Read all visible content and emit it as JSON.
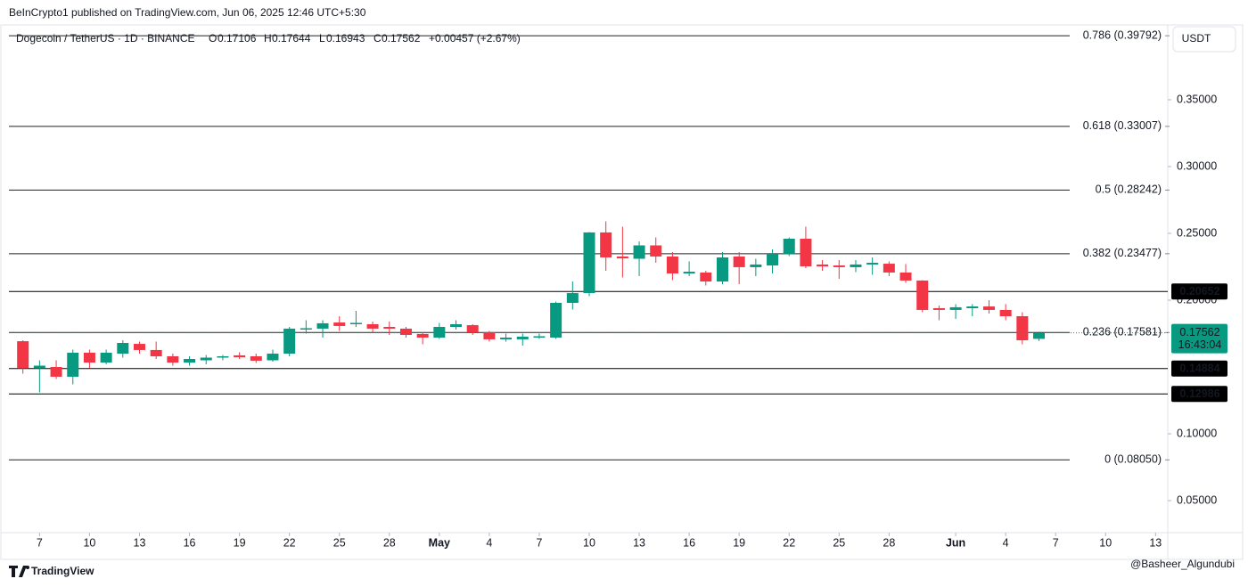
{
  "chart_data": {
    "type": "candlestick",
    "published": "BeInCrypto1 published on TradingView.com, Jun 06, 2025 12:46 UTC+5:30",
    "symbol": "Dogecoin / TetherUS · 1D · BINANCE",
    "ohlc_keys": [
      "O",
      "H",
      "L",
      "C"
    ],
    "change": "+0.00457 (+2.67%)",
    "currency": "USDT",
    "countdown": "16:43:04",
    "brand": "TradingView",
    "watermark": "@Basheer_Algundubi",
    "up_color": "#089981",
    "down_color": "#f23645",
    "x": [
      "2025-04-06",
      "2025-04-07",
      "2025-04-08",
      "2025-04-09",
      "2025-04-10",
      "2025-04-11",
      "2025-04-12",
      "2025-04-13",
      "2025-04-14",
      "2025-04-15",
      "2025-04-16",
      "2025-04-17",
      "2025-04-18",
      "2025-04-19",
      "2025-04-20",
      "2025-04-21",
      "2025-04-22",
      "2025-04-23",
      "2025-04-24",
      "2025-04-25",
      "2025-04-26",
      "2025-04-27",
      "2025-04-28",
      "2025-04-29",
      "2025-04-30",
      "2025-05-01",
      "2025-05-02",
      "2025-05-03",
      "2025-05-04",
      "2025-05-05",
      "2025-05-06",
      "2025-05-07",
      "2025-05-08",
      "2025-05-09",
      "2025-05-10",
      "2025-05-11",
      "2025-05-12",
      "2025-05-13",
      "2025-05-14",
      "2025-05-15",
      "2025-05-16",
      "2025-05-17",
      "2025-05-18",
      "2025-05-19",
      "2025-05-20",
      "2025-05-21",
      "2025-05-22",
      "2025-05-23",
      "2025-05-24",
      "2025-05-25",
      "2025-05-26",
      "2025-05-27",
      "2025-05-28",
      "2025-05-29",
      "2025-05-30",
      "2025-05-31",
      "2025-06-01",
      "2025-06-02",
      "2025-06-03",
      "2025-06-04",
      "2025-06-05",
      "2025-06-06"
    ],
    "open": [
      0.1693,
      0.1493,
      0.15,
      0.1427,
      0.1607,
      0.1533,
      0.16,
      0.1673,
      0.1627,
      0.158,
      0.1533,
      0.155,
      0.157,
      0.1587,
      0.158,
      0.155,
      0.16,
      0.178,
      0.1787,
      0.1833,
      0.182,
      0.182,
      0.18,
      0.1787,
      0.1747,
      0.172,
      0.18,
      0.1813,
      0.176,
      0.1707,
      0.1707,
      0.172,
      0.172,
      0.198,
      0.2053,
      0.2507,
      0.2327,
      0.231,
      0.241,
      0.2327,
      0.22,
      0.2207,
      0.214,
      0.2327,
      0.2247,
      0.226,
      0.2347,
      0.246,
      0.2267,
      0.226,
      0.2247,
      0.2267,
      0.2273,
      0.2207,
      0.2147,
      0.194,
      0.1927,
      0.194,
      0.1953,
      0.1927,
      0.188,
      0.17106
    ],
    "high": [
      0.17,
      0.155,
      0.155,
      0.163,
      0.163,
      0.163,
      0.17,
      0.169,
      0.169,
      0.16,
      0.158,
      0.159,
      0.159,
      0.161,
      0.16,
      0.163,
      0.18,
      0.185,
      0.185,
      0.188,
      0.192,
      0.184,
      0.184,
      0.18,
      0.176,
      0.183,
      0.185,
      0.182,
      0.177,
      0.175,
      0.175,
      0.175,
      0.199,
      0.214,
      0.251,
      0.259,
      0.255,
      0.244,
      0.247,
      0.236,
      0.229,
      0.222,
      0.236,
      0.236,
      0.231,
      0.238,
      0.247,
      0.255,
      0.23,
      0.23,
      0.23,
      0.232,
      0.229,
      0.227,
      0.215,
      0.196,
      0.197,
      0.197,
      0.2,
      0.197,
      0.191,
      0.17644
    ],
    "low": [
      0.145,
      0.131,
      0.141,
      0.137,
      0.149,
      0.152,
      0.157,
      0.16,
      0.156,
      0.151,
      0.151,
      0.152,
      0.155,
      0.156,
      0.153,
      0.154,
      0.158,
      0.175,
      0.172,
      0.177,
      0.18,
      0.176,
      0.174,
      0.172,
      0.167,
      0.171,
      0.178,
      0.174,
      0.169,
      0.169,
      0.166,
      0.171,
      0.171,
      0.193,
      0.203,
      0.222,
      0.217,
      0.218,
      0.228,
      0.215,
      0.218,
      0.211,
      0.212,
      0.212,
      0.218,
      0.22,
      0.233,
      0.224,
      0.222,
      0.216,
      0.221,
      0.219,
      0.218,
      0.213,
      0.191,
      0.185,
      0.186,
      0.188,
      0.19,
      0.185,
      0.167,
      0.16943
    ],
    "close": [
      0.1493,
      0.151,
      0.1427,
      0.1607,
      0.1533,
      0.1607,
      0.168,
      0.1627,
      0.158,
      0.1533,
      0.156,
      0.157,
      0.158,
      0.1573,
      0.1547,
      0.16,
      0.1787,
      0.179,
      0.1827,
      0.1807,
      0.183,
      0.1787,
      0.1787,
      0.174,
      0.172,
      0.18,
      0.182,
      0.176,
      0.1707,
      0.172,
      0.1727,
      0.173,
      0.198,
      0.2053,
      0.2507,
      0.232,
      0.2313,
      0.241,
      0.2327,
      0.22,
      0.2213,
      0.214,
      0.232,
      0.2247,
      0.2267,
      0.2347,
      0.246,
      0.2253,
      0.2253,
      0.2247,
      0.2267,
      0.228,
      0.2207,
      0.2147,
      0.1927,
      0.1927,
      0.1947,
      0.1953,
      0.1927,
      0.188,
      0.17,
      0.17562
    ],
    "xlim": [
      "2025-04-05",
      "2025-06-14"
    ],
    "xticks": [
      {
        "value": "2025-04-07",
        "label": "7"
      },
      {
        "value": "2025-04-10",
        "label": "10"
      },
      {
        "value": "2025-04-13",
        "label": "13"
      },
      {
        "value": "2025-04-16",
        "label": "16"
      },
      {
        "value": "2025-04-19",
        "label": "19"
      },
      {
        "value": "2025-04-22",
        "label": "22"
      },
      {
        "value": "2025-04-25",
        "label": "25"
      },
      {
        "value": "2025-04-28",
        "label": "28"
      },
      {
        "value": "2025-05-01",
        "label": "May"
      },
      {
        "value": "2025-05-04",
        "label": "4"
      },
      {
        "value": "2025-05-07",
        "label": "7"
      },
      {
        "value": "2025-05-10",
        "label": "10"
      },
      {
        "value": "2025-05-13",
        "label": "13"
      },
      {
        "value": "2025-05-16",
        "label": "16"
      },
      {
        "value": "2025-05-19",
        "label": "19"
      },
      {
        "value": "2025-05-22",
        "label": "22"
      },
      {
        "value": "2025-05-25",
        "label": "25"
      },
      {
        "value": "2025-05-28",
        "label": "28"
      },
      {
        "value": "2025-06-01",
        "label": "Jun"
      },
      {
        "value": "2025-06-04",
        "label": "4"
      },
      {
        "value": "2025-06-07",
        "label": "7"
      },
      {
        "value": "2025-06-10",
        "label": "10"
      },
      {
        "value": "2025-06-13",
        "label": "13"
      }
    ],
    "ylim": [
      0.026,
      0.406
    ],
    "yticks": [
      {
        "value": 0.05,
        "label": "0.05000"
      },
      {
        "value": 0.1,
        "label": "0.10000"
      },
      {
        "value": 0.2,
        "label": "0.20000"
      },
      {
        "value": 0.25,
        "label": "0.25000"
      },
      {
        "value": 0.3,
        "label": "0.30000"
      },
      {
        "value": 0.35,
        "label": "0.35000"
      }
    ],
    "fib_levels": [
      {
        "value": 0.39792,
        "label": "0.786 (0.39792)"
      },
      {
        "value": 0.33007,
        "label": "0.618 (0.33007)"
      },
      {
        "value": 0.28242,
        "label": "0.5 (0.28242)"
      },
      {
        "value": 0.23477,
        "label": "0.382 (0.23477)"
      },
      {
        "value": 0.17581,
        "label": "0.236 (0.17581)"
      },
      {
        "value": 0.0805,
        "label": "0 (0.08050)"
      }
    ],
    "levels": [
      0.20652,
      0.14884,
      0.12986
    ]
  }
}
